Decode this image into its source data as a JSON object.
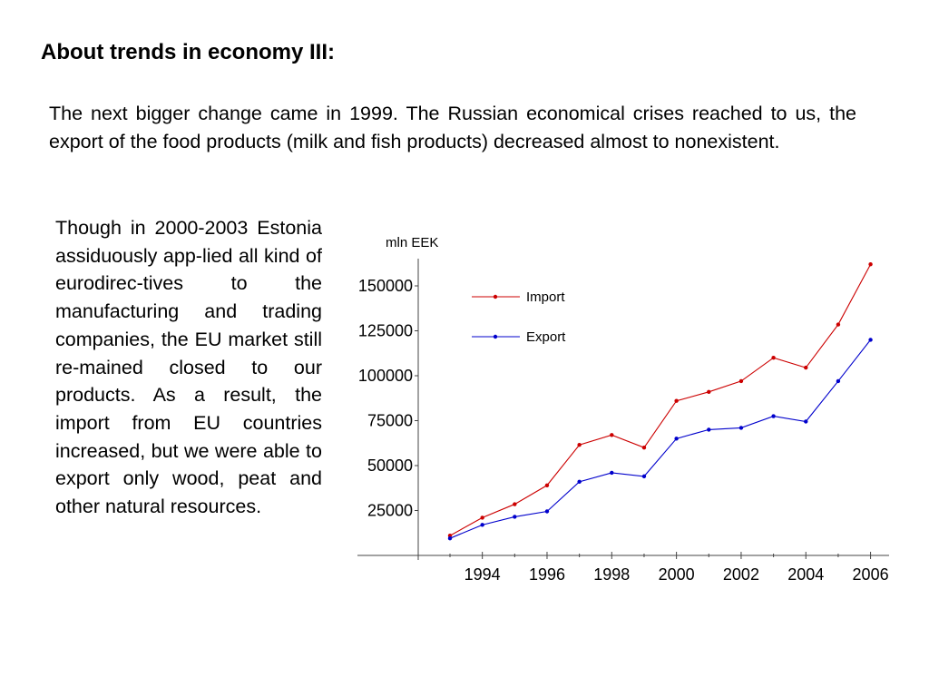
{
  "slide": {
    "title": "About trends in economy III:",
    "intro": "The next bigger change came in 1999. The Russian economical crises reached to us, the export of the food products (milk and fish products) decreased almost to nonexistent.",
    "body": "Though in 2000-2003 Estonia assiduously app-lied all kind of eurodirec-tives to the manufacturing and trading companies, the EU market still re-mained closed to our products. As a result, the import from EU countries increased, but we were able to export only wood, peat and other natural resources."
  },
  "chart_data": {
    "type": "line",
    "title": "",
    "xlabel": "",
    "ylabel": "mln EEK",
    "x": [
      1993,
      1994,
      1995,
      1996,
      1997,
      1998,
      1999,
      2000,
      2001,
      2002,
      2003,
      2004,
      2005,
      2006
    ],
    "xticks": [
      1994,
      1996,
      1998,
      2000,
      2002,
      2004,
      2006
    ],
    "yticks": [
      25000,
      50000,
      75000,
      100000,
      125000,
      150000
    ],
    "xlim": [
      1992.5,
      2006.2
    ],
    "ylim": [
      0,
      168000
    ],
    "grid": false,
    "legend_position": "top-left",
    "series": [
      {
        "name": "Import",
        "color": "#cc0000",
        "values": [
          11000,
          21000,
          28500,
          39000,
          61500,
          67000,
          60000,
          86000,
          91000,
          97000,
          110000,
          104500,
          128500,
          162000
        ]
      },
      {
        "name": "Export",
        "color": "#0000cc",
        "values": [
          9500,
          17000,
          21500,
          24500,
          41000,
          46000,
          44000,
          65000,
          70000,
          71000,
          77500,
          74500,
          97000,
          120000
        ]
      }
    ]
  }
}
